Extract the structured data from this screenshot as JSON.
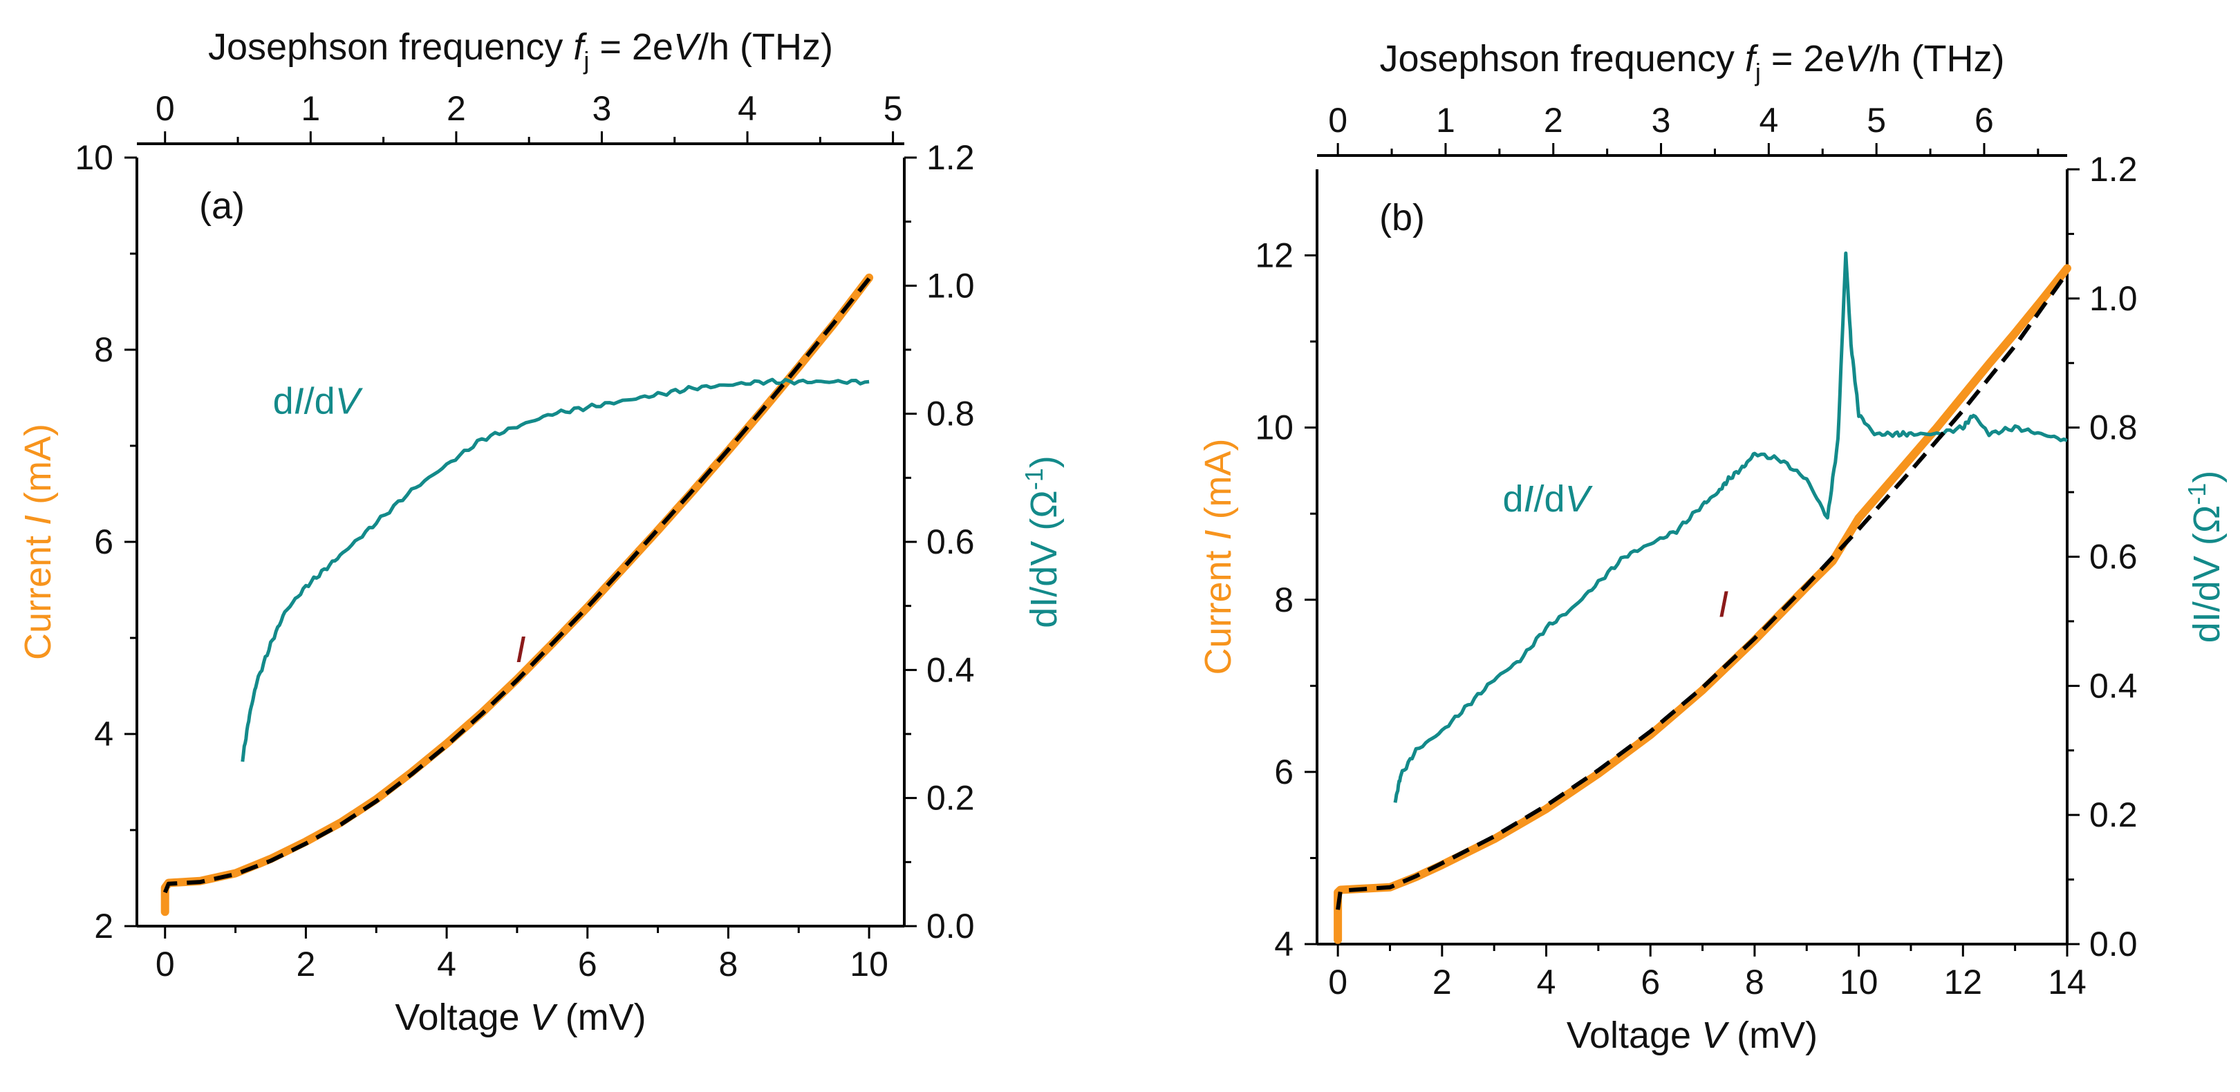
{
  "colors": {
    "current": "#F7941D",
    "didv": "#138A8A",
    "fit": "#000000",
    "i_label": "#8B1A1A",
    "axis": "#000000"
  },
  "chart_data": [
    {
      "panel_label": "(a)",
      "type": "line",
      "x_axis": {
        "label_prefix": "Voltage ",
        "label_var": "V",
        "label_suffix": " (mV)",
        "range": [
          -0.4,
          10.5
        ],
        "ticks": [
          0,
          2,
          4,
          6,
          8,
          10
        ],
        "tick_labels": [
          "0",
          "2",
          "4",
          "6",
          "8",
          "10"
        ]
      },
      "top_axis": {
        "label_prefix": "Josephson frequency ",
        "label_var": "f",
        "label_sub": "j",
        "label_mid": " = 2e",
        "label_var2": "V",
        "label_suffix": "/h  (THz)",
        "thz_per_mV": 0.4836,
        "ticks": [
          0,
          1,
          2,
          3,
          4,
          5
        ],
        "tick_labels": [
          "0",
          "1",
          "2",
          "3",
          "4",
          "5"
        ]
      },
      "y_left": {
        "label_prefix": "Current ",
        "label_var": "I",
        "label_suffix": " (mA)",
        "range": [
          2,
          10
        ],
        "ticks": [
          2,
          4,
          6,
          8,
          10
        ],
        "tick_labels": [
          "2",
          "4",
          "6",
          "8",
          "10"
        ]
      },
      "y_right": {
        "label_prefix": "dI/dV (Ω",
        "label_sup": "-1",
        "label_suffix": ")",
        "range": [
          0,
          1.2
        ],
        "ticks": [
          0,
          0.2,
          0.4,
          0.6,
          0.8,
          1.0,
          1.2
        ],
        "tick_labels": [
          "0.0",
          "0.2",
          "0.4",
          "0.6",
          "0.8",
          "1.0",
          "1.2"
        ]
      },
      "series": [
        {
          "name": "I",
          "label_text": "I",
          "label_at": [
            5.05,
            4.75
          ],
          "axis": "left",
          "x": [
            0,
            0,
            0.05,
            0.5,
            1,
            1.5,
            2,
            2.5,
            3,
            3.5,
            4,
            4.5,
            5,
            5.5,
            6,
            6.5,
            7,
            7.5,
            8,
            8.5,
            9,
            9.5,
            10
          ],
          "y": [
            2.15,
            2.4,
            2.45,
            2.47,
            2.55,
            2.7,
            2.88,
            3.08,
            3.32,
            3.6,
            3.9,
            4.22,
            4.57,
            4.94,
            5.32,
            5.72,
            6.12,
            6.53,
            6.95,
            7.38,
            7.82,
            8.27,
            8.75
          ]
        },
        {
          "name": "fit",
          "axis": "left",
          "x": [
            0,
            0.05,
            0.5,
            1,
            1.5,
            2,
            2.5,
            3,
            3.5,
            4,
            4.5,
            5,
            5.5,
            6,
            6.5,
            7,
            7.5,
            8,
            8.5,
            9,
            9.5,
            10
          ],
          "y": [
            2.35,
            2.44,
            2.46,
            2.54,
            2.68,
            2.86,
            3.06,
            3.3,
            3.58,
            3.88,
            4.21,
            4.56,
            4.94,
            5.32,
            5.72,
            6.13,
            6.54,
            6.96,
            7.39,
            7.83,
            8.28,
            8.74
          ]
        },
        {
          "name": "dI/dV",
          "label_prefix": "d",
          "label_var": "I",
          "label_mid": "/d",
          "label_var2": "V",
          "label_at": [
            2.15,
            0.8
          ],
          "axis": "right",
          "x": [
            1.1,
            1.2,
            1.3,
            1.5,
            1.7,
            2.0,
            2.3,
            2.6,
            3.0,
            3.5,
            4.0,
            4.5,
            5.0,
            5.5,
            6.0,
            6.5,
            7.0,
            7.5,
            8.0,
            8.5,
            9.0,
            9.5,
            10.0
          ],
          "y": [
            0.26,
            0.33,
            0.38,
            0.44,
            0.49,
            0.53,
            0.56,
            0.59,
            0.63,
            0.68,
            0.72,
            0.76,
            0.78,
            0.8,
            0.81,
            0.82,
            0.83,
            0.84,
            0.845,
            0.85,
            0.85,
            0.85,
            0.85
          ]
        }
      ]
    },
    {
      "panel_label": "(b)",
      "type": "line",
      "x_axis": {
        "label_prefix": "Voltage ",
        "label_var": "V",
        "label_suffix": " (mV)",
        "range": [
          -0.4,
          14
        ],
        "ticks": [
          0,
          2,
          4,
          6,
          8,
          10,
          12,
          14
        ],
        "tick_labels": [
          "0",
          "2",
          "4",
          "6",
          "8",
          "10",
          "12",
          "14"
        ]
      },
      "top_axis": {
        "label_prefix": "Josephson frequency ",
        "label_var": "f",
        "label_sub": "j",
        "label_mid": " = 2e",
        "label_var2": "V",
        "label_suffix": "/h  (THz)",
        "thz_per_mV": 0.4836,
        "ticks": [
          0,
          1,
          2,
          3,
          4,
          5,
          6
        ],
        "tick_labels": [
          "0",
          "1",
          "2",
          "3",
          "4",
          "5",
          "6"
        ]
      },
      "y_left": {
        "label_prefix": "Current ",
        "label_var": "I",
        "label_suffix": " (mA)",
        "range": [
          4,
          13
        ],
        "ticks": [
          4,
          6,
          8,
          10,
          12
        ],
        "tick_labels": [
          "4",
          "6",
          "8",
          "10",
          "12"
        ]
      },
      "y_right": {
        "label_prefix": "dI/dV (Ω",
        "label_sup": "-1",
        "label_suffix": ")",
        "range": [
          0,
          1.2
        ],
        "ticks": [
          0,
          0.2,
          0.4,
          0.6,
          0.8,
          1.0,
          1.2
        ],
        "tick_labels": [
          "0.0",
          "0.2",
          "0.4",
          "0.6",
          "0.8",
          "1.0",
          "1.2"
        ]
      },
      "series": [
        {
          "name": "I",
          "label_text": "I",
          "label_at": [
            7.4,
            7.8
          ],
          "axis": "left",
          "x": [
            0,
            0,
            0.05,
            1,
            1.5,
            2,
            3,
            4,
            5,
            6,
            7,
            8,
            9,
            9.5,
            10,
            10.5,
            11,
            11.5,
            12,
            12.5,
            13,
            13.5,
            14
          ],
          "y": [
            4.05,
            4.6,
            4.63,
            4.66,
            4.78,
            4.92,
            5.22,
            5.57,
            5.98,
            6.43,
            6.95,
            7.53,
            8.15,
            8.45,
            8.95,
            9.3,
            9.65,
            10.0,
            10.37,
            10.74,
            11.1,
            11.47,
            11.85
          ]
        },
        {
          "name": "fit",
          "axis": "left",
          "x": [
            0,
            0.05,
            1,
            1.5,
            2,
            3,
            4,
            5,
            6,
            7,
            8,
            9,
            10,
            11,
            12,
            13,
            14
          ],
          "y": [
            4.4,
            4.62,
            4.66,
            4.79,
            4.94,
            5.25,
            5.61,
            6.02,
            6.47,
            6.98,
            7.55,
            8.17,
            8.82,
            9.5,
            10.2,
            10.95,
            11.8
          ]
        },
        {
          "name": "dI/dV",
          "label_prefix": "d",
          "label_var": "I",
          "label_mid": "/d",
          "label_var2": "V",
          "label_at": [
            4.0,
            0.67
          ],
          "axis": "right",
          "x": [
            1.1,
            1.2,
            1.5,
            2,
            2.5,
            3,
            3.5,
            4,
            4.5,
            5,
            5.5,
            6,
            6.5,
            7,
            7.3,
            7.5,
            7.8,
            8.0,
            8.5,
            9.0,
            9.4,
            9.6,
            9.75,
            9.85,
            10.0,
            10.3,
            10.7,
            11.0,
            11.5,
            12.0,
            12.2,
            12.5,
            13.0,
            13.5,
            14.0
          ],
          "y": [
            0.22,
            0.26,
            0.3,
            0.33,
            0.37,
            0.41,
            0.44,
            0.49,
            0.52,
            0.56,
            0.6,
            0.62,
            0.64,
            0.68,
            0.7,
            0.72,
            0.74,
            0.76,
            0.75,
            0.72,
            0.66,
            0.78,
            1.07,
            0.93,
            0.82,
            0.79,
            0.79,
            0.79,
            0.79,
            0.8,
            0.82,
            0.79,
            0.8,
            0.79,
            0.78
          ]
        }
      ]
    }
  ]
}
